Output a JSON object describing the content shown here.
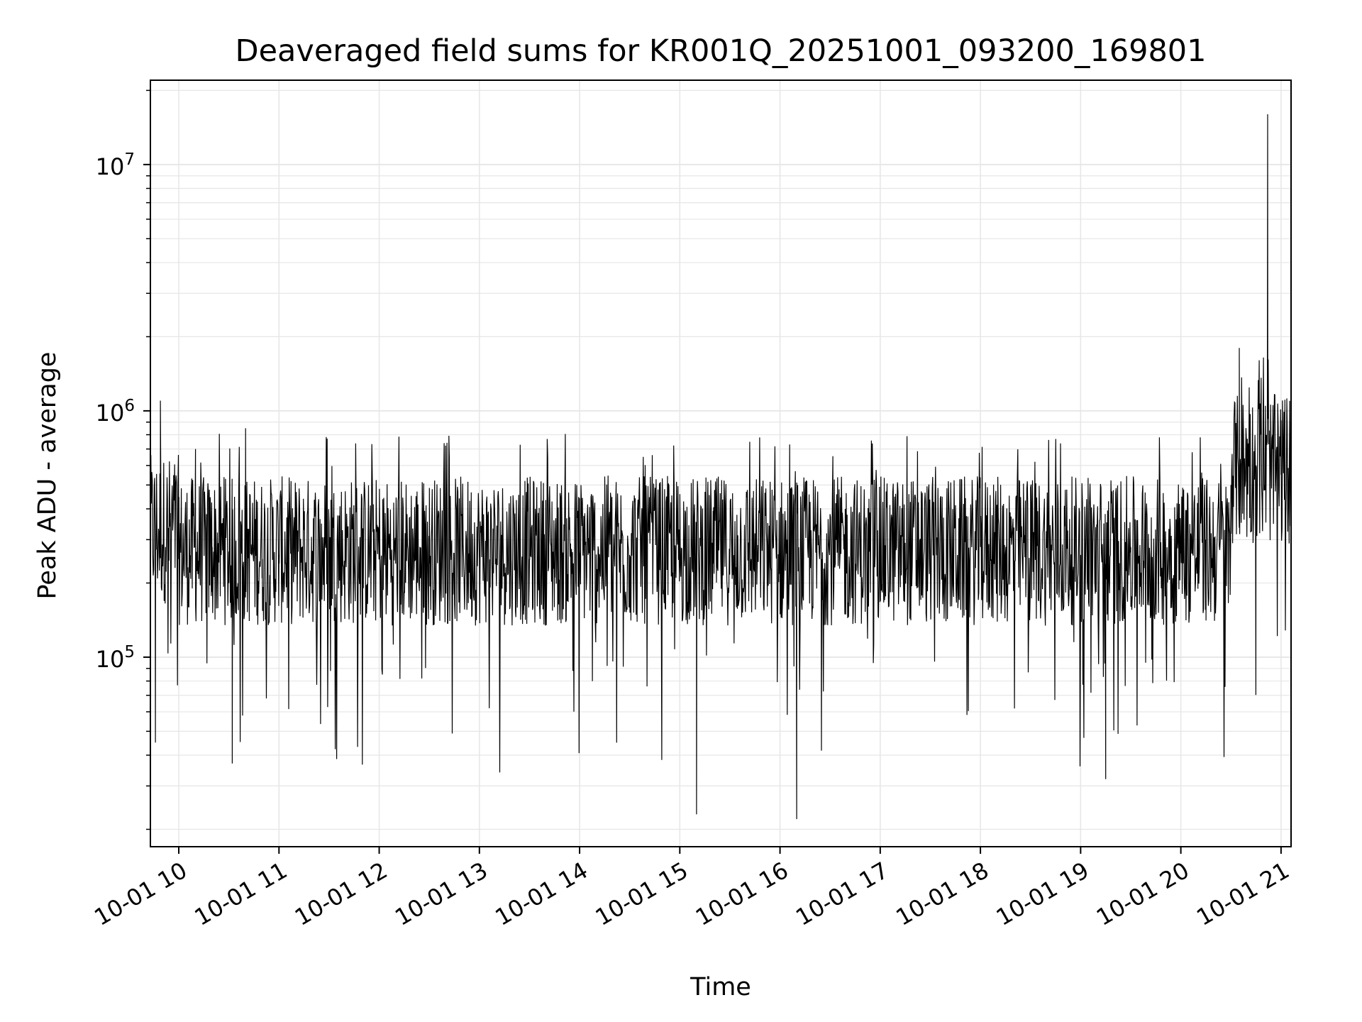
{
  "chart_data": {
    "type": "line",
    "title": "Deaveraged field sums for KR001Q_20251001_093200_169801",
    "xlabel": "Time",
    "ylabel": "Peak ADU - average",
    "yscale": "log",
    "grid": true,
    "line_color": "#000000",
    "grid_color": "#e6e6e6",
    "xlim": [
      "2025-10-01 09:43",
      "2025-10-01 21:06"
    ],
    "ylim": [
      17000,
      22000000
    ],
    "x_ticks": [
      {
        "value": "2025-10-01 10:00",
        "label": "10-01 10"
      },
      {
        "value": "2025-10-01 11:00",
        "label": "10-01 11"
      },
      {
        "value": "2025-10-01 12:00",
        "label": "10-01 12"
      },
      {
        "value": "2025-10-01 13:00",
        "label": "10-01 13"
      },
      {
        "value": "2025-10-01 14:00",
        "label": "10-01 14"
      },
      {
        "value": "2025-10-01 15:00",
        "label": "10-01 15"
      },
      {
        "value": "2025-10-01 16:00",
        "label": "10-01 16"
      },
      {
        "value": "2025-10-01 17:00",
        "label": "10-01 17"
      },
      {
        "value": "2025-10-01 18:00",
        "label": "10-01 18"
      },
      {
        "value": "2025-10-01 19:00",
        "label": "10-01 19"
      },
      {
        "value": "2025-10-01 20:00",
        "label": "10-01 20"
      },
      {
        "value": "2025-10-01 21:00",
        "label": "10-01 21"
      }
    ],
    "y_ticks": [
      {
        "value": 100000,
        "base": "10",
        "exp": "5"
      },
      {
        "value": 1000000,
        "base": "10",
        "exp": "6"
      },
      {
        "value": 10000000,
        "base": "10",
        "exp": "7"
      }
    ],
    "series": [
      {
        "x": [
          "2025-10-01 09:43",
          "2025-10-01 09:46",
          "2025-10-01 09:49",
          "2025-10-01 09:52",
          "2025-10-01 09:55",
          "2025-10-01 10:00",
          "2025-10-01 10:10",
          "2025-10-01 10:20",
          "2025-10-01 10:30",
          "2025-10-01 10:32",
          "2025-10-01 10:40",
          "2025-10-01 10:50",
          "2025-10-01 11:00",
          "2025-10-01 11:20",
          "2025-10-01 11:40",
          "2025-10-01 12:00",
          "2025-10-01 12:30",
          "2025-10-01 13:00",
          "2025-10-01 13:15",
          "2025-10-01 13:30",
          "2025-10-01 13:45",
          "2025-10-01 14:00",
          "2025-10-01 14:30",
          "2025-10-01 15:00",
          "2025-10-01 15:10",
          "2025-10-01 15:20",
          "2025-10-01 15:30",
          "2025-10-01 15:45",
          "2025-10-01 16:00",
          "2025-10-01 16:10",
          "2025-10-01 16:25",
          "2025-10-01 16:40",
          "2025-10-01 17:00",
          "2025-10-01 17:30",
          "2025-10-01 18:00",
          "2025-10-01 18:30",
          "2025-10-01 19:00",
          "2025-10-01 19:15",
          "2025-10-01 19:30",
          "2025-10-01 19:45",
          "2025-10-01 20:00",
          "2025-10-01 20:15",
          "2025-10-01 20:30",
          "2025-10-01 20:35",
          "2025-10-01 20:45",
          "2025-10-01 20:52",
          "2025-10-01 20:55",
          "2025-10-01 21:00",
          "2025-10-01 21:05"
        ],
        "y": [
          300000,
          45000,
          1100000,
          280000,
          320000,
          250000,
          700000,
          280000,
          200000,
          37000,
          850000,
          250000,
          260000,
          270000,
          250000,
          260000,
          240000,
          250000,
          240000,
          250000,
          240000,
          270000,
          260000,
          280000,
          23000,
          240000,
          250000,
          240000,
          250000,
          22000,
          250000,
          240000,
          260000,
          270000,
          280000,
          270000,
          260000,
          32000,
          280000,
          270000,
          290000,
          300000,
          500000,
          1800000,
          600000,
          16000000,
          700000,
          550000,
          600000
        ]
      }
    ]
  }
}
